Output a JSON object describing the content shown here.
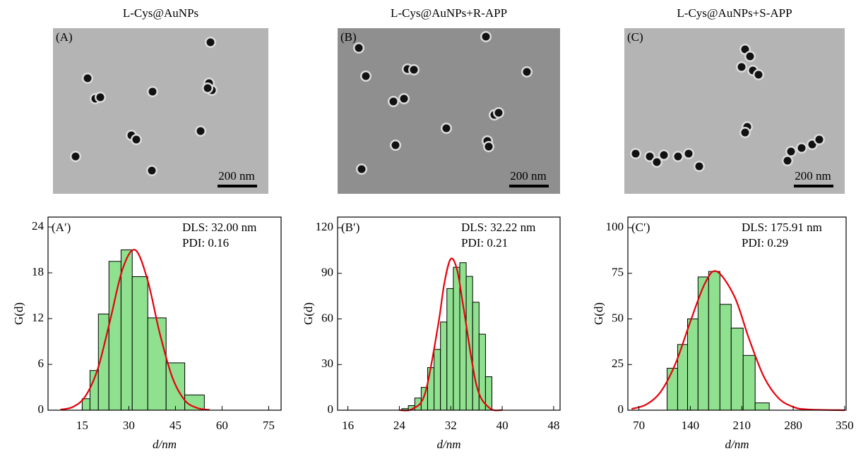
{
  "panels": [
    {
      "title": "L-Cys@AuNPs",
      "label": "(A)",
      "scale_bar": "200 nm"
    },
    {
      "title": "L-Cys@AuNPs+R-APP",
      "label": "(B)",
      "scale_bar": "200 nm"
    },
    {
      "title": "L-Cys@AuNPs+S-APP",
      "label": "(C)",
      "scale_bar": "200 nm"
    }
  ],
  "chart_data": [
    {
      "type": "histogram",
      "panel_label": "(A′)",
      "annotations": [
        "DLS: 32.00 nm",
        "PDI: 0.16"
      ],
      "x_label": "d/nm",
      "y_label": "G(d)",
      "bins": [
        15,
        17.5,
        20.2,
        23.6,
        27.5,
        31.1,
        36.1,
        42,
        48,
        54.3
      ],
      "values": [
        1.5,
        5.2,
        12.6,
        19.5,
        21,
        17.5,
        12.1,
        6.2,
        2.0
      ],
      "color": "#8fe08f",
      "fit": {
        "x": [
          8,
          12,
          16,
          20,
          24,
          28,
          32,
          36,
          40,
          44,
          48,
          52,
          56
        ],
        "y": [
          0.08,
          0.43,
          1.81,
          5.4,
          11.8,
          18.5,
          21,
          17.1,
          10.0,
          4.3,
          1.3,
          0.29,
          0.05
        ],
        "color": "#e8000b"
      },
      "xlim": [
        4,
        79
      ],
      "ylim": [
        0,
        25.3
      ],
      "xticks": [
        15,
        30,
        45,
        60,
        75
      ],
      "yticks": [
        0,
        6,
        12,
        18,
        24
      ]
    },
    {
      "type": "histogram",
      "panel_label": "(B′)",
      "annotations": [
        "DLS: 32.22 nm",
        "PDI: 0.21"
      ],
      "x_label": "d/nm",
      "y_label": "G(d)",
      "bins": [
        24.4,
        25.4,
        26.4,
        27.4,
        28.4,
        29.4,
        30.4,
        31.4,
        32.4,
        33.4,
        34.4,
        35.4,
        36.4,
        37.4,
        38.4
      ],
      "values": [
        1,
        3,
        8,
        15,
        28,
        40,
        58,
        80,
        94,
        97,
        88,
        71,
        50,
        22
      ],
      "color": "#8fe08f",
      "fit": {
        "x": [
          24,
          26,
          28,
          30,
          31,
          32,
          33,
          34,
          36,
          38,
          40
        ],
        "y": [
          0.02,
          0.8,
          11,
          55,
          83.5,
          99.5,
          92,
          67,
          16.4,
          1.5,
          0.05
        ],
        "color": "#e8000b"
      },
      "xlim": [
        14.4,
        49
      ],
      "ylim": [
        0,
        127
      ],
      "xticks": [
        16,
        24,
        32,
        40,
        48
      ],
      "yticks": [
        0,
        30,
        60,
        90,
        120
      ]
    },
    {
      "type": "histogram",
      "panel_label": "(C′)",
      "annotations": [
        "DLS: 175.91 nm",
        "PDI: 0.29"
      ],
      "x_label": "d/nm",
      "y_label": "G(d)",
      "bins": [
        108.4,
        122.7,
        136.2,
        150.5,
        164.9,
        180.3,
        195.6,
        211.9,
        228.2,
        247.4
      ],
      "values": [
        23,
        36,
        50,
        73,
        76,
        58,
        45,
        30,
        4
      ],
      "color": "#8fe08f",
      "fit": {
        "x": [
          60,
          80,
          100,
          120,
          140,
          160,
          176,
          200,
          220,
          240,
          260,
          280,
          300,
          350
        ],
        "y": [
          0.7,
          3.1,
          10.3,
          25.7,
          48.5,
          69.6,
          76,
          62.3,
          39,
          18.4,
          6.6,
          1.8,
          0.4,
          0
        ],
        "color": "#e8000b"
      },
      "xlim": [
        55,
        352
      ],
      "ylim": [
        0,
        105.8
      ],
      "xticks": [
        70,
        140,
        210,
        280,
        350
      ],
      "yticks": [
        0,
        25,
        50,
        75,
        100
      ]
    }
  ]
}
